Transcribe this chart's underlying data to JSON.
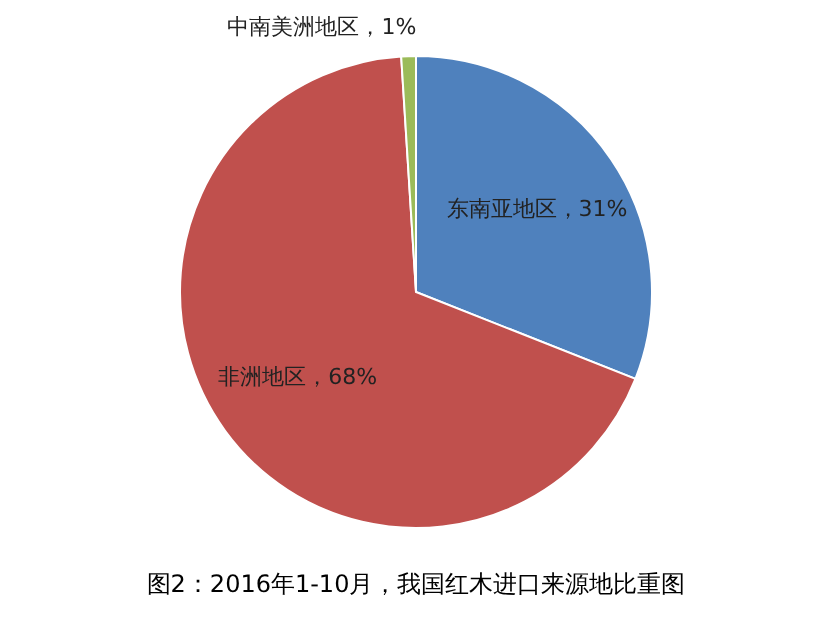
{
  "chart_data": {
    "type": "pie",
    "title": "图2：2016年1-10月，我国红木进口来源地比重图",
    "categories": [
      "东南亚地区",
      "非洲地区",
      "中南美洲地区"
    ],
    "values": [
      31,
      68,
      1
    ],
    "colors": [
      "#4f81bd",
      "#c0504d",
      "#9bbb59"
    ],
    "value_labels": [
      "31%",
      "68%",
      "1%"
    ],
    "legend": false
  }
}
